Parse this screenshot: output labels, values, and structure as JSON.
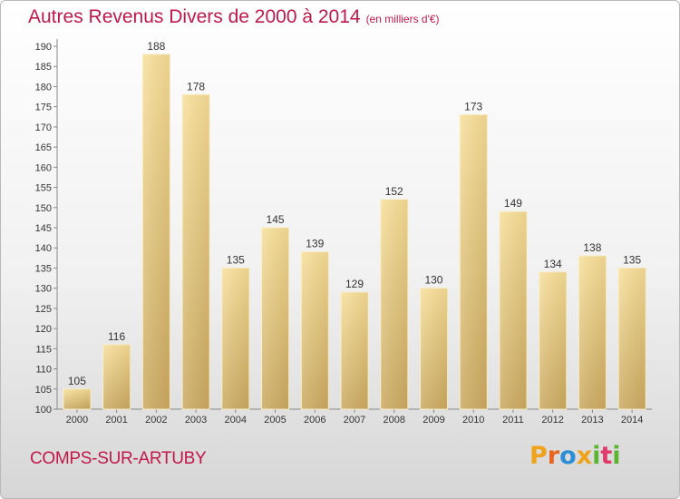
{
  "title": {
    "main": "Autres Revenus Divers de 2000 à 2014",
    "unit": "(en milliers d'€)"
  },
  "commune": "COMPS-SUR-ARTUBY",
  "logo": {
    "letters": [
      "P",
      "r",
      "o",
      "x",
      "i",
      "t",
      "i"
    ],
    "colors": [
      "#f0a21a",
      "#e8651d",
      "#2c8ed6",
      "#f0a21a",
      "#5bb531",
      "#e03a6a",
      "#5bb531"
    ]
  },
  "chart_data": {
    "type": "bar",
    "title": "Autres Revenus Divers de 2000 à 2014",
    "subtitle": "(en milliers d'€)",
    "xlabel": "",
    "ylabel": "",
    "categories": [
      "2000",
      "2001",
      "2002",
      "2003",
      "2004",
      "2005",
      "2006",
      "2007",
      "2008",
      "2009",
      "2010",
      "2011",
      "2012",
      "2013",
      "2014"
    ],
    "values": [
      105,
      116,
      188,
      178,
      135,
      145,
      139,
      129,
      152,
      130,
      173,
      149,
      134,
      138,
      135
    ],
    "ylim": [
      100,
      190
    ],
    "yticks": [
      100,
      105,
      110,
      115,
      120,
      125,
      130,
      135,
      140,
      145,
      150,
      155,
      160,
      165,
      170,
      175,
      180,
      185,
      190
    ],
    "grid": false,
    "bar_color": "#e2c27a",
    "data_labels": true
  }
}
